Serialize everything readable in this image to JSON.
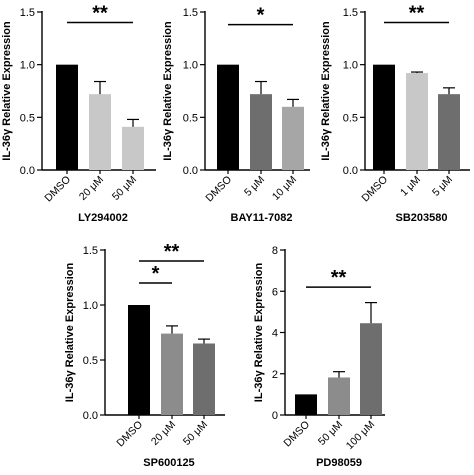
{
  "ylabel": "IL-36γ Relative Expression",
  "chart_data": [
    {
      "type": "bar",
      "title": "",
      "xlabel": "LY294002",
      "ylabel": "IL-36γ Relative Expression",
      "ylim": [
        0,
        1.5
      ],
      "yticks": [
        "0.0",
        "0.5",
        "1.0",
        "1.5"
      ],
      "ytick_values": [
        0,
        0.5,
        1.0,
        1.5
      ],
      "categories": [
        "DMSO",
        "20 μM",
        "50 μM"
      ],
      "values": [
        1.0,
        0.72,
        0.41
      ],
      "errors": [
        0,
        0.12,
        0.07
      ],
      "colors": [
        "#000000",
        "#c8c8c8",
        "#c8c8c8"
      ],
      "significance": [
        {
          "from": 0,
          "to": 2,
          "level": 1.4,
          "label": "**"
        }
      ]
    },
    {
      "type": "bar",
      "title": "",
      "xlabel": "BAY11-7082",
      "ylabel": "IL-36γ Relative Expression",
      "ylim": [
        0,
        1.5
      ],
      "yticks": [
        "0.0",
        "0.5",
        "1.0",
        "1.5"
      ],
      "ytick_values": [
        0,
        0.5,
        1.0,
        1.5
      ],
      "categories": [
        "DMSO",
        "5 μM",
        "10 μM"
      ],
      "values": [
        1.0,
        0.72,
        0.6
      ],
      "errors": [
        0,
        0.12,
        0.07
      ],
      "colors": [
        "#000000",
        "#6e6e6e",
        "#a6a6a6"
      ],
      "significance": [
        {
          "from": 0,
          "to": 2,
          "level": 1.38,
          "label": "*"
        }
      ]
    },
    {
      "type": "bar",
      "title": "",
      "xlabel": "SB203580",
      "ylabel": "IL-36γ Relative Expression",
      "ylim": [
        0,
        1.5
      ],
      "yticks": [
        "0.0",
        "0.5",
        "1.0",
        "1.5"
      ],
      "ytick_values": [
        0,
        0.5,
        1.0,
        1.5
      ],
      "categories": [
        "DMSO",
        "1 μM",
        "5 μM"
      ],
      "values": [
        1.0,
        0.92,
        0.72
      ],
      "errors": [
        0,
        0.01,
        0.06
      ],
      "colors": [
        "#000000",
        "#c8c8c8",
        "#6e6e6e"
      ],
      "significance": [
        {
          "from": 0,
          "to": 2,
          "level": 1.4,
          "label": "**"
        }
      ]
    },
    {
      "type": "bar",
      "title": "",
      "xlabel": "SP600125",
      "ylabel": "IL-36γ Relative Expression",
      "ylim": [
        0,
        1.5
      ],
      "yticks": [
        "0.0",
        "0.5",
        "1.0",
        "1.5"
      ],
      "ytick_values": [
        0,
        0.5,
        1.0,
        1.5
      ],
      "categories": [
        "DMSO",
        "20 μM",
        "50 μM"
      ],
      "values": [
        1.0,
        0.74,
        0.65
      ],
      "errors": [
        0,
        0.07,
        0.04
      ],
      "colors": [
        "#000000",
        "#8c8c8c",
        "#6e6e6e"
      ],
      "significance": [
        {
          "from": 0,
          "to": 1,
          "level": 1.2,
          "label": "*"
        },
        {
          "from": 0,
          "to": 2,
          "level": 1.4,
          "label": "**"
        }
      ]
    },
    {
      "type": "bar",
      "title": "",
      "xlabel": "PD98059",
      "ylabel": "IL-36γ Relative Expression",
      "ylim": [
        0,
        8
      ],
      "yticks": [
        "0",
        "2",
        "4",
        "6",
        "8"
      ],
      "ytick_values": [
        0,
        2,
        4,
        6,
        8
      ],
      "categories": [
        "DMSO",
        "50 μM",
        "100 μM"
      ],
      "values": [
        1.0,
        1.82,
        4.45
      ],
      "errors": [
        0,
        0.28,
        1.0
      ],
      "colors": [
        "#000000",
        "#8c8c8c",
        "#6e6e6e"
      ],
      "significance": [
        {
          "from": 0,
          "to": 2,
          "level": 6.2,
          "label": "**"
        }
      ]
    }
  ]
}
